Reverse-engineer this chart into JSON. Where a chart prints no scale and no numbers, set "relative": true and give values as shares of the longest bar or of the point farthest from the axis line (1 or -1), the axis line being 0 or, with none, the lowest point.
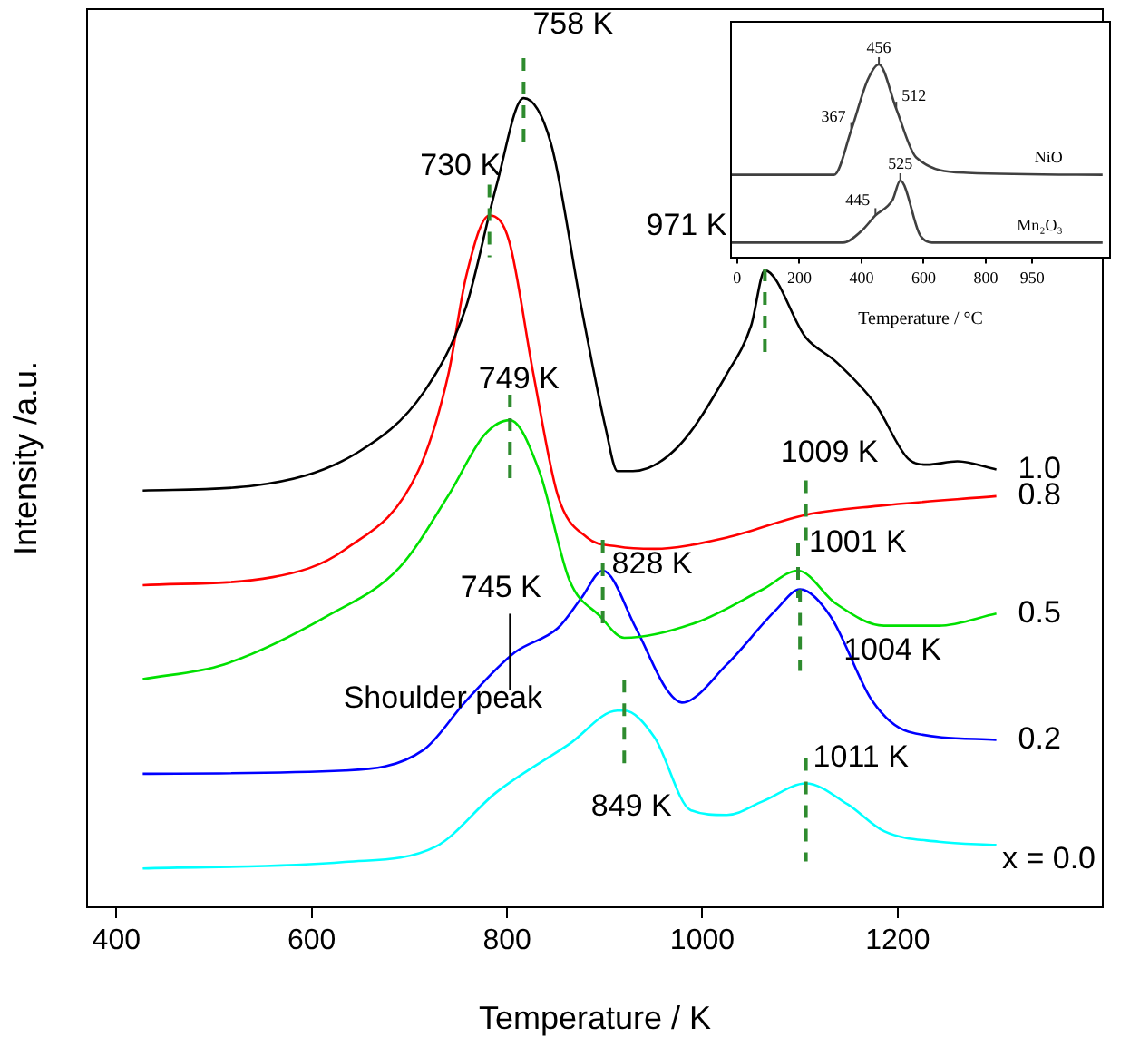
{
  "chart_data": [
    {
      "type": "line",
      "xlabel": "Temperature / K",
      "ylabel": "Intensity /a.u.",
      "relative": true,
      "tick_labels": "x",
      "xlim": [
        370,
        1410
      ],
      "xticks": [
        400,
        600,
        800,
        1000,
        1200
      ],
      "series": [
        {
          "name": "1.0",
          "color": "#000000",
          "x": [
            427,
            541,
            647,
            715,
            758,
            789,
            817,
            845,
            876,
            901,
            913,
            929,
            975,
            1025,
            1050,
            1064,
            1106,
            1137,
            1177,
            1211,
            1230,
            1261,
            1301
          ],
          "values": [
            0.515,
            0.521,
            0.562,
            0.637,
            0.742,
            0.891,
            1.0,
            0.944,
            0.742,
            0.592,
            0.539,
            0.539,
            0.569,
            0.659,
            0.719,
            0.787,
            0.704,
            0.674,
            0.622,
            0.554,
            0.547,
            0.551,
            0.541
          ]
        },
        {
          "name": "0.8",
          "color": "#ff0000",
          "x": [
            427,
            560,
            634,
            709,
            740,
            758,
            782,
            802,
            827,
            852,
            882,
            913,
            951,
            1025,
            1106,
            1180,
            1301
          ],
          "values": [
            0.398,
            0.408,
            0.442,
            0.539,
            0.659,
            0.779,
            0.855,
            0.824,
            0.659,
            0.509,
            0.457,
            0.446,
            0.443,
            0.457,
            0.485,
            0.496,
            0.508
          ]
        },
        {
          "name": "0.5",
          "color": "#00e000",
          "x": [
            427,
            510,
            616,
            690,
            740,
            777,
            803,
            833,
            864,
            895,
            920,
            994,
            1062,
            1098,
            1137,
            1186,
            1242,
            1301
          ],
          "values": [
            0.282,
            0.3,
            0.36,
            0.42,
            0.509,
            0.584,
            0.602,
            0.539,
            0.404,
            0.36,
            0.333,
            0.352,
            0.393,
            0.416,
            0.375,
            0.348,
            0.348,
            0.363
          ]
        },
        {
          "name": "0.2",
          "color": "#0000ff",
          "x": [
            427,
            634,
            715,
            758,
            808,
            852,
            876,
            898,
            932,
            963,
            979,
            1025,
            1075,
            1100,
            1131,
            1174,
            1211,
            1301
          ],
          "values": [
            0.165,
            0.169,
            0.195,
            0.255,
            0.315,
            0.345,
            0.382,
            0.416,
            0.345,
            0.27,
            0.253,
            0.3,
            0.367,
            0.393,
            0.36,
            0.255,
            0.217,
            0.207
          ]
        },
        {
          "name": "x = 0.0",
          "color": "#00ffff",
          "x": [
            427,
            634,
            727,
            789,
            864,
            913,
            920,
            951,
            988,
            1025,
            1062,
            1106,
            1149,
            1186,
            1242,
            1301
          ],
          "values": [
            0.048,
            0.056,
            0.075,
            0.142,
            0.202,
            0.243,
            0.243,
            0.21,
            0.12,
            0.114,
            0.131,
            0.153,
            0.127,
            0.094,
            0.081,
            0.077
          ]
        }
      ],
      "annotations": [
        {
          "text": "758 K",
          "x": 817,
          "y": 1.0
        },
        {
          "text": "730 K",
          "x": 782,
          "y": 0.855
        },
        {
          "text": "971 K",
          "x": 1064,
          "y": 0.787
        },
        {
          "text": "749 K",
          "x": 803,
          "y": 0.602
        },
        {
          "text": "828 K",
          "x": 898,
          "y": 0.416
        },
        {
          "text": "1009 K",
          "x": 1106,
          "y": 0.485
        },
        {
          "text": "1001 K",
          "x": 1098,
          "y": 0.416
        },
        {
          "text": "1004 K",
          "x": 1100,
          "y": 0.393
        },
        {
          "text": "745 K",
          "x": 803,
          "y": 0.3
        },
        {
          "text": "Shoulder peak",
          "x": 803,
          "y": 0.3
        },
        {
          "text": "849 K",
          "x": 920,
          "y": 0.243
        },
        {
          "text": "1011 K",
          "x": 1106,
          "y": 0.153
        }
      ]
    },
    {
      "type": "line",
      "xlabel": "Temperature / °C",
      "relative": true,
      "tick_labels": "x",
      "xlim": [
        -20,
        1200
      ],
      "xticks": [
        0,
        200,
        400,
        600,
        800,
        950
      ],
      "series": [
        {
          "name": "NiO",
          "color": "#404040",
          "x": [
            -20,
            312,
            367,
            420,
            456,
            512,
            576,
            741,
            1176
          ],
          "values": [
            0.43,
            0.43,
            0.66,
            0.92,
            1.0,
            0.77,
            0.52,
            0.44,
            0.43
          ]
        },
        {
          "name": "Mn₂O₃",
          "color": "#404040",
          "x": [
            -20,
            341,
            400,
            445,
            500,
            525,
            588,
            627,
            1176
          ],
          "values": [
            0.08,
            0.08,
            0.14,
            0.22,
            0.3,
            0.4,
            0.12,
            0.08,
            0.08
          ]
        }
      ],
      "annotations": [
        {
          "text": "367",
          "x": 367,
          "y": 0.66
        },
        {
          "text": "456",
          "x": 456,
          "y": 1.0
        },
        {
          "text": "512",
          "x": 512,
          "y": 0.77
        },
        {
          "text": "445",
          "x": 445,
          "y": 0.22
        },
        {
          "text": "525",
          "x": 525,
          "y": 0.4
        }
      ]
    }
  ]
}
